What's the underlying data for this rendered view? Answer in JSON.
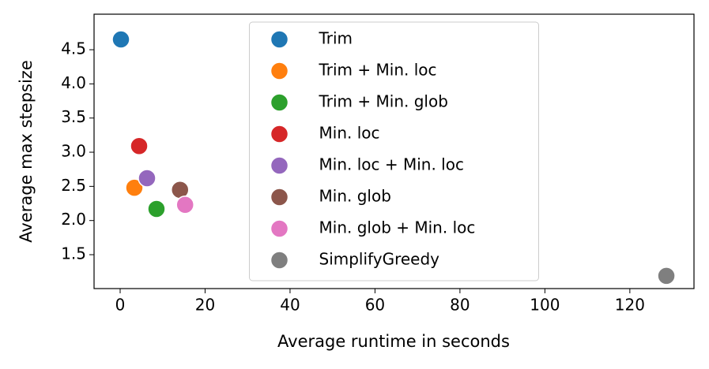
{
  "chart_data": {
    "type": "scatter",
    "x_label": "Average runtime in seconds",
    "y_label": "Average max stepsize",
    "xlim": [
      -6.14,
      135.1
    ],
    "ylim": [
      1.004,
      5.02
    ],
    "xticks": [
      0,
      20,
      40,
      60,
      80,
      100,
      120
    ],
    "yticks": [
      1.5,
      {
        "value": 2.0,
        "label": "2.0"
      },
      2.5,
      {
        "value": 3.0,
        "label": "3.0"
      },
      3.5,
      {
        "value": 4.0,
        "label": "4.0"
      },
      4.5
    ],
    "legend": "upper center",
    "series": [
      {
        "name": "Trim",
        "color": "#1f77b4",
        "x": [
          0.19
        ],
        "values": [
          4.65
        ]
      },
      {
        "name": "Trim + Min. loc",
        "color": "#ff7f0e",
        "x": [
          3.35
        ],
        "values": [
          2.48
        ]
      },
      {
        "name": "Trim + Min. glob",
        "color": "#2ca02c",
        "x": [
          8.56
        ],
        "values": [
          2.17
        ]
      },
      {
        "name": "Min. loc",
        "color": "#d62728",
        "x": [
          4.47
        ],
        "values": [
          3.09
        ]
      },
      {
        "name": "Min. loc + Min. loc",
        "color": "#9467bd",
        "x": [
          6.33
        ],
        "values": [
          2.62
        ]
      },
      {
        "name": "Min. glob",
        "color": "#8c564b",
        "x": [
          14.1
        ],
        "values": [
          2.45
        ]
      },
      {
        "name": "Min. glob + Min. loc",
        "color": "#e377c2",
        "x": [
          15.3
        ],
        "values": [
          2.23
        ]
      },
      {
        "name": "SimplifyGreedy",
        "color": "#7f7f7f",
        "x": [
          128.6
        ],
        "values": [
          1.19
        ]
      }
    ]
  }
}
